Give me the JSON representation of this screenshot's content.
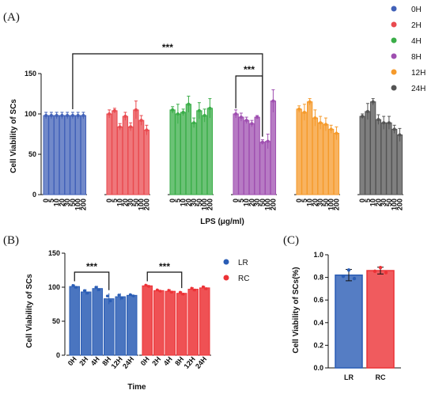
{
  "panel_labels": {
    "a": "(A)",
    "b": "(B)",
    "c": "(C)"
  },
  "significance": "***",
  "colors": {
    "0H": "#4161b8",
    "2H": "#e94a4f",
    "4H": "#3aad48",
    "8H": "#9f4fb0",
    "12H": "#f59a2b",
    "24H": "#545454",
    "LR": "#2a5db5",
    "RC": "#ec3236"
  },
  "chart_data": [
    {
      "id": "A",
      "type": "bar",
      "ylabel": "Cell Viability of SCs",
      "xlabel": "LPS (μg/ml)",
      "ylim": [
        0,
        150
      ],
      "yticks": [
        0,
        50,
        100,
        150
      ],
      "categories": [
        "0",
        "5",
        "10",
        "20",
        "30",
        "50",
        "100",
        "200"
      ],
      "legend_position": "top-right",
      "series": [
        {
          "name": "0H",
          "values": [
            98,
            98,
            98,
            98,
            98,
            98,
            98,
            98
          ],
          "errors": [
            4,
            4,
            4,
            4,
            4,
            4,
            4,
            4
          ]
        },
        {
          "name": "2H",
          "values": [
            100,
            104,
            84,
            97,
            84,
            105,
            92,
            80
          ],
          "errors": [
            5,
            3,
            4,
            5,
            5,
            11,
            6,
            6
          ]
        },
        {
          "name": "4H",
          "values": [
            105,
            100,
            102,
            112,
            89,
            104,
            98,
            107
          ],
          "errors": [
            4,
            12,
            4,
            10,
            6,
            10,
            8,
            12
          ]
        },
        {
          "name": "8H",
          "values": [
            100,
            96,
            92,
            88,
            96,
            65,
            66,
            116
          ],
          "errors": [
            5,
            5,
            4,
            4,
            2,
            3,
            9,
            14
          ]
        },
        {
          "name": "12H",
          "values": [
            106,
            102,
            115,
            95,
            89,
            87,
            81,
            76
          ],
          "errors": [
            4,
            10,
            4,
            10,
            8,
            8,
            5,
            8
          ]
        },
        {
          "name": "24H",
          "values": [
            97,
            103,
            115,
            93,
            89,
            89,
            81,
            74
          ],
          "errors": [
            3,
            10,
            4,
            6,
            8,
            8,
            5,
            8
          ]
        }
      ],
      "annotations": [
        {
          "text": "***",
          "from": "0H:50",
          "to": "8H:50"
        },
        {
          "text": "***",
          "from": "8H:0",
          "to": "8H:50"
        }
      ]
    },
    {
      "id": "B",
      "type": "bar",
      "xlabel": "Time",
      "ylabel": "Cell Viability of SCs",
      "ylim": [
        0,
        150
      ],
      "yticks": [
        0,
        50,
        100,
        150
      ],
      "categories": [
        "0H",
        "2H",
        "4H",
        "8H",
        "12H",
        "24H"
      ],
      "legend_position": "right",
      "series": [
        {
          "name": "LR",
          "values": [
            101,
            93,
            98,
            83,
            86,
            88
          ],
          "errors": [
            3,
            4,
            4,
            8,
            5,
            2
          ]
        },
        {
          "name": "RC",
          "values": [
            102,
            95,
            94,
            91,
            97,
            99
          ],
          "errors": [
            2,
            2,
            3,
            3,
            3,
            3
          ]
        }
      ],
      "annotations": [
        {
          "text": "***",
          "series": "LR",
          "from": "0H",
          "to": "8H"
        },
        {
          "text": "***",
          "series": "RC",
          "from": "0H",
          "to": "8H"
        }
      ]
    },
    {
      "id": "C",
      "type": "bar",
      "ylabel": "Cell Viability of SCs(%)",
      "ylim": [
        0,
        1.0
      ],
      "yticks": [
        "0.0",
        "0.2",
        "0.4",
        "0.6",
        "0.8",
        "1.0"
      ],
      "categories": [
        "LR",
        "RC"
      ],
      "values": [
        0.82,
        0.86
      ],
      "errors": [
        0.05,
        0.03
      ]
    }
  ]
}
